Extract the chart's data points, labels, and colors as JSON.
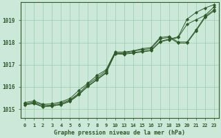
{
  "title": "Graphe pression niveau de la mer (hPa)",
  "background_color": "#cce8d8",
  "grid_color": "#99ccaa",
  "line_color": "#2d5a27",
  "marker_color": "#2d5a27",
  "ylim": [
    1014.6,
    1019.8
  ],
  "yticks": [
    1015,
    1016,
    1017,
    1018,
    1019
  ],
  "xtick_labels": [
    "0",
    "1",
    "2",
    "3",
    "4",
    "5",
    "6",
    "7",
    "8",
    "9",
    "10",
    "13",
    "14",
    "15",
    "16",
    "17",
    "18",
    "19",
    "20",
    "21",
    "22",
    "23"
  ],
  "xlim": [
    -0.5,
    21.5
  ],
  "series": [
    [
      1015.2,
      1015.25,
      1015.1,
      1015.15,
      1015.2,
      1015.35,
      1015.65,
      1016.05,
      1016.35,
      1016.65,
      1017.5,
      1017.5,
      1017.55,
      1017.6,
      1017.65,
      1018.05,
      1018.15,
      1018.25,
      1019.05,
      1019.35,
      1019.55,
      1019.7
    ],
    [
      1015.2,
      1015.28,
      1015.12,
      1015.14,
      1015.22,
      1015.38,
      1015.68,
      1016.02,
      1016.32,
      1016.62,
      1017.48,
      1017.47,
      1017.52,
      1017.57,
      1017.63,
      1018.02,
      1018.12,
      1018.22,
      1018.82,
      1019.02,
      1019.22,
      1019.6
    ],
    [
      1015.25,
      1015.32,
      1015.18,
      1015.18,
      1015.27,
      1015.42,
      1015.72,
      1016.12,
      1016.42,
      1016.72,
      1017.52,
      1017.52,
      1017.62,
      1017.67,
      1017.72,
      1018.17,
      1018.22,
      1017.97,
      1017.97,
      1018.52,
      1019.12,
      1019.42
    ],
    [
      1015.3,
      1015.37,
      1015.22,
      1015.24,
      1015.33,
      1015.48,
      1015.85,
      1016.17,
      1016.52,
      1016.77,
      1017.57,
      1017.57,
      1017.62,
      1017.72,
      1017.77,
      1018.22,
      1018.27,
      1018.02,
      1018.02,
      1018.57,
      1019.17,
      1019.47
    ]
  ],
  "x_positions": [
    0,
    1,
    2,
    3,
    4,
    5,
    6,
    7,
    8,
    9,
    10,
    11,
    12,
    13,
    14,
    15,
    16,
    17,
    18,
    19,
    20,
    21
  ],
  "xtick_positions": [
    0,
    1,
    2,
    3,
    4,
    5,
    6,
    7,
    8,
    9,
    10,
    11,
    12,
    13,
    14,
    15,
    16,
    17,
    18,
    19,
    20,
    21
  ],
  "figwidth": 3.2,
  "figheight": 2.0,
  "dpi": 100
}
